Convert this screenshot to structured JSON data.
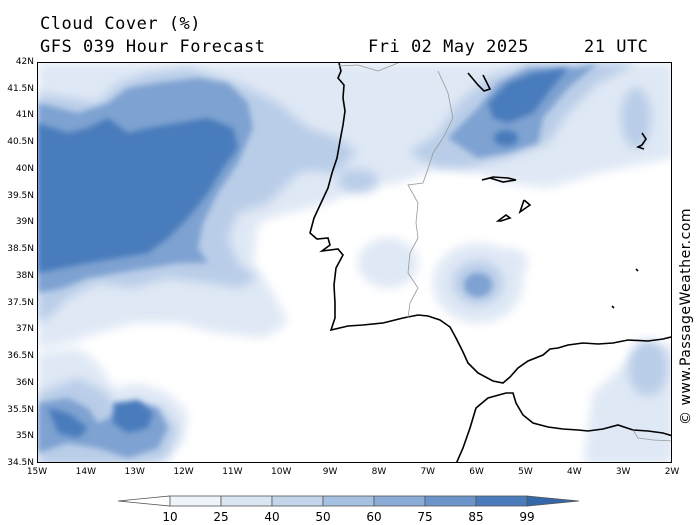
{
  "header": {
    "title": "Cloud Cover (%)",
    "model": "GFS 039 Hour Forecast",
    "valid_date": "Fri 02 May 2025",
    "valid_time": "21 UTC"
  },
  "credit": "© www.PassageWeather.com",
  "axes": {
    "lat_labels": [
      "42N",
      "41.5N",
      "41N",
      "40.5N",
      "40N",
      "39.5N",
      "39N",
      "38.5N",
      "38N",
      "37.5N",
      "37N",
      "36.5N",
      "36N",
      "35.5N",
      "35N",
      "34.5N"
    ],
    "lon_labels": [
      "15W",
      "14W",
      "13W",
      "12W",
      "11W",
      "10W",
      "9W",
      "8W",
      "7W",
      "6W",
      "5W",
      "4W",
      "3W",
      "2W"
    ]
  },
  "legend": {
    "levels": [
      "10",
      "25",
      "40",
      "50",
      "60",
      "75",
      "85",
      "99"
    ],
    "colors": [
      "#ffffff",
      "#eef3fa",
      "#dae5f3",
      "#c3d4eb",
      "#a6c0e1",
      "#89abd6",
      "#6b95ca",
      "#4a7cbc",
      "#3568a8"
    ]
  }
}
